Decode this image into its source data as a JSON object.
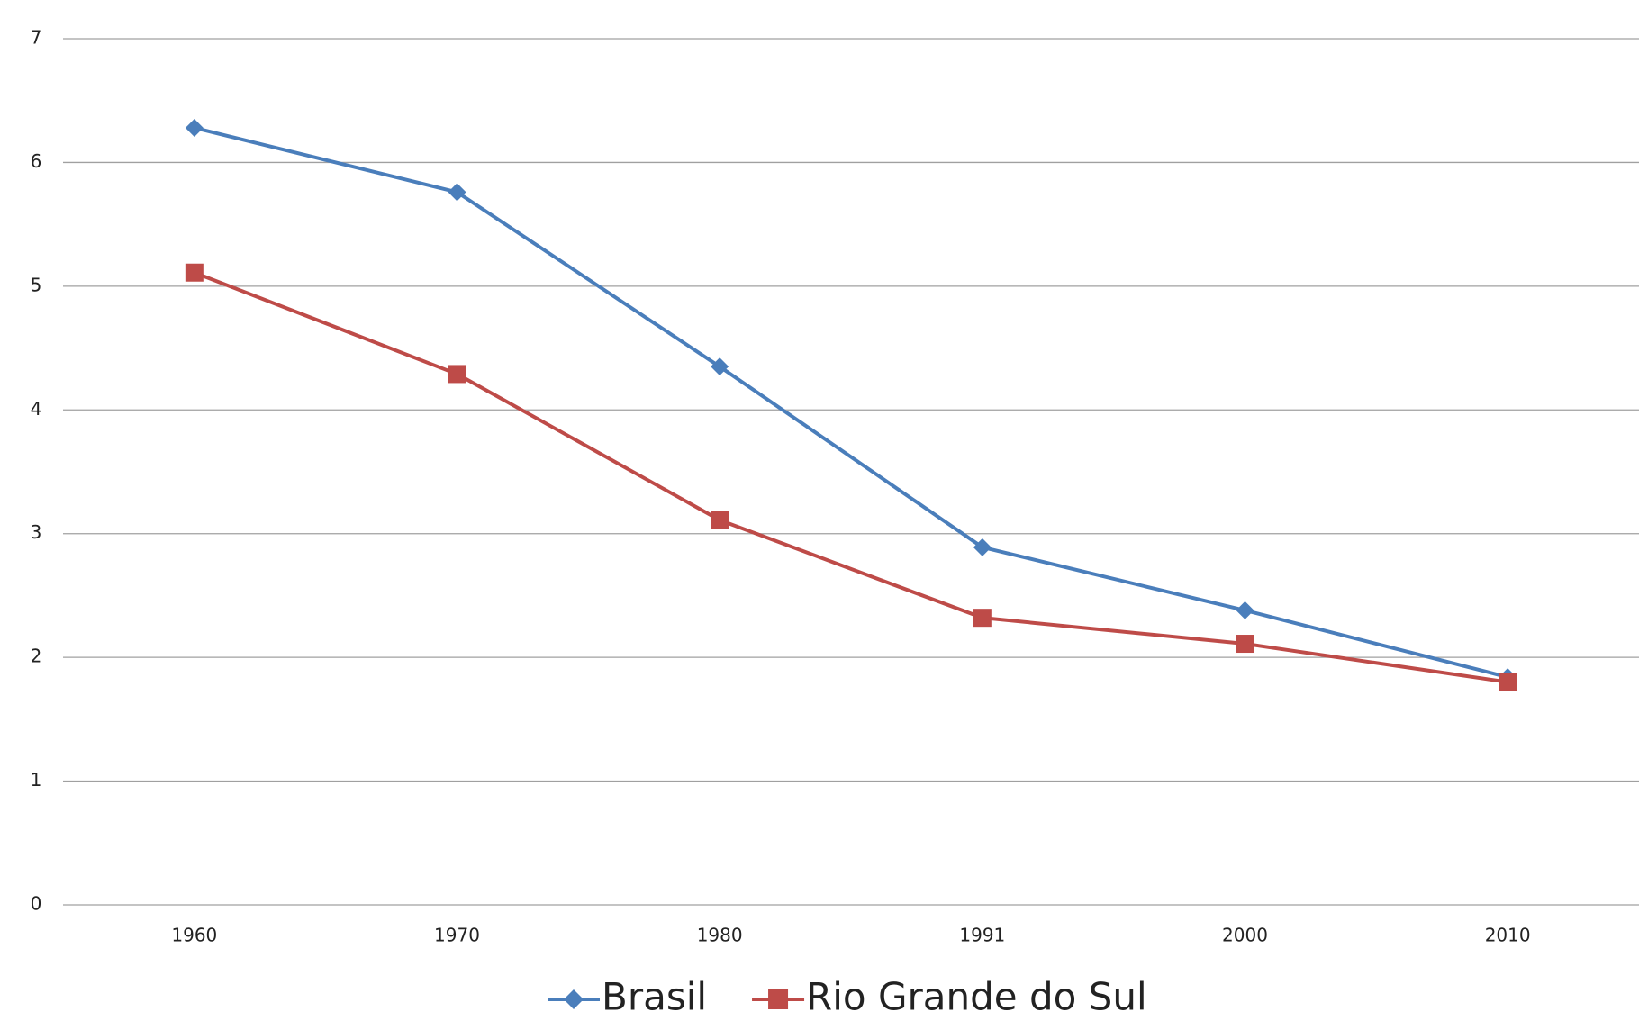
{
  "chart_data": {
    "type": "line",
    "categories": [
      "1960",
      "1970",
      "1980",
      "1991",
      "2000",
      "2010"
    ],
    "series": [
      {
        "name": "Brasil",
        "color": "#4a7ebb",
        "marker": "diamond",
        "values": [
          6.28,
          5.76,
          4.35,
          2.89,
          2.38,
          1.84
        ]
      },
      {
        "name": "Rio Grande do Sul",
        "color": "#be4b48",
        "marker": "square",
        "values": [
          5.11,
          4.29,
          3.11,
          2.32,
          2.11,
          1.8
        ]
      }
    ],
    "ylim": [
      0,
      7
    ],
    "yticks": [
      0,
      1,
      2,
      3,
      4,
      5,
      6,
      7
    ],
    "grid": true,
    "legend": "bottom"
  }
}
